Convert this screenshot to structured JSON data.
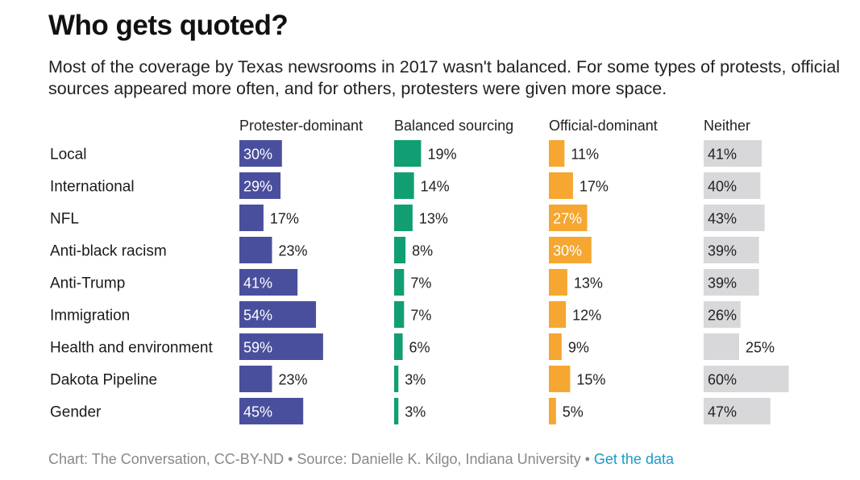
{
  "title": "Who gets quoted?",
  "subtitle": "Most of the coverage by Texas newsrooms in 2017 wasn't balanced. For some types of protests, official sources appeared more often, and for others, protesters were given more space.",
  "footer": {
    "credit": "Chart: The Conversation, CC-BY-ND • Source: Danielle K. Kilgo, Indiana University • ",
    "link_label": "Get the data"
  },
  "colors": {
    "protester": "#4a4f9d",
    "balanced": "#119e73",
    "official": "#f5a731",
    "neither": "#d8d8da"
  },
  "chart_data": {
    "type": "bar",
    "categories": [
      "Local",
      "International",
      "NFL",
      "Anti-black racism",
      "Anti-Trump",
      "Immigration",
      "Health and environment",
      "Dakota Pipeline",
      "Gender"
    ],
    "series": [
      {
        "name": "Protester-dominant",
        "values": [
          30,
          29,
          17,
          23,
          41,
          54,
          59,
          23,
          45
        ]
      },
      {
        "name": "Balanced sourcing",
        "values": [
          19,
          14,
          13,
          8,
          7,
          7,
          6,
          3,
          3
        ]
      },
      {
        "name": "Official-dominant",
        "values": [
          11,
          17,
          27,
          30,
          13,
          12,
          9,
          15,
          5
        ]
      },
      {
        "name": "Neither",
        "values": [
          41,
          40,
          43,
          39,
          39,
          26,
          25,
          60,
          47
        ]
      }
    ],
    "value_suffix": "%",
    "layout": "small multiples, horizontal bars, one column per series",
    "grid": false
  }
}
